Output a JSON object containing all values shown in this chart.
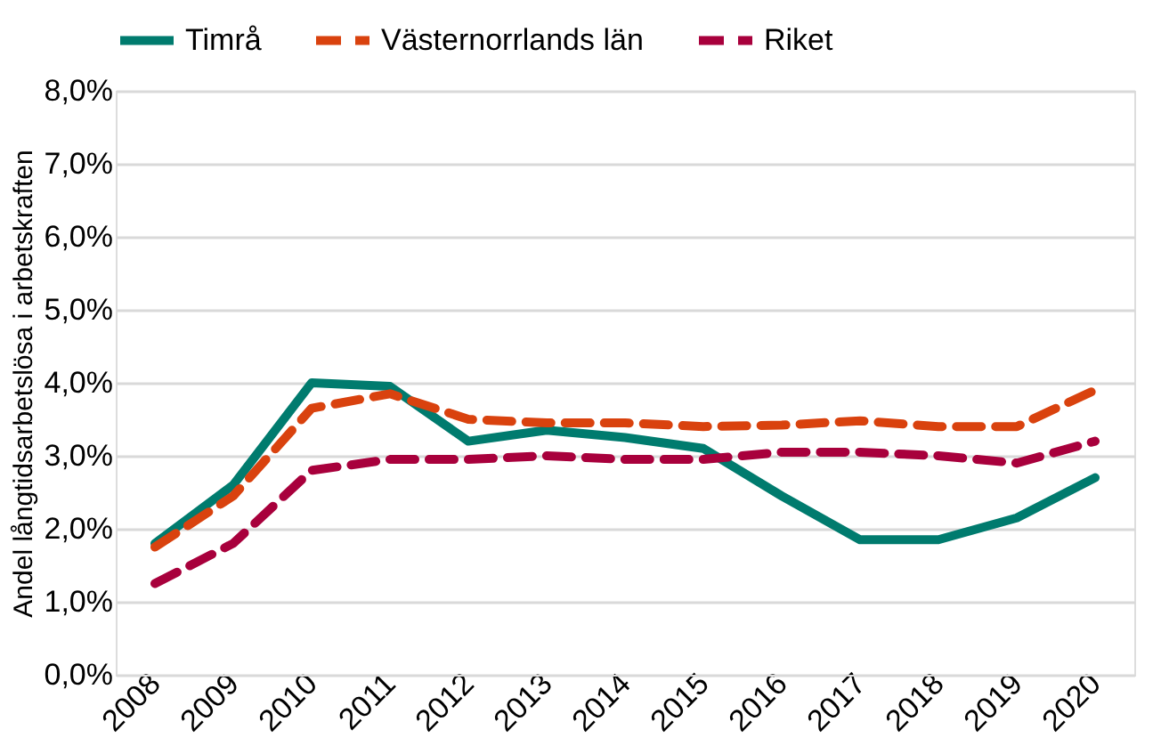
{
  "chart_data": {
    "type": "line",
    "ylabel": "Andel långtidsarbetslösa i arbetskraften",
    "categories": [
      "2008",
      "2009",
      "2010",
      "2011",
      "2012",
      "2013",
      "2014",
      "2015",
      "2016",
      "2017",
      "2018",
      "2019",
      "2020"
    ],
    "series": [
      {
        "name": "Timrå",
        "color": "#007b6e",
        "line_style": "solid",
        "values": [
          1.8,
          2.6,
          4.0,
          3.95,
          3.2,
          3.35,
          3.25,
          3.1,
          2.45,
          1.85,
          1.85,
          2.15,
          2.7
        ]
      },
      {
        "name": "Västernorrlands län",
        "color": "#d9420e",
        "line_style": "dashed",
        "values": [
          1.75,
          2.45,
          3.65,
          3.85,
          3.5,
          3.45,
          3.45,
          3.4,
          3.42,
          3.48,
          3.4,
          3.4,
          3.9
        ]
      },
      {
        "name": "Riket",
        "color": "#a8003c",
        "line_style": "dashed",
        "values": [
          1.25,
          1.8,
          2.8,
          2.95,
          2.95,
          3.0,
          2.95,
          2.95,
          3.05,
          3.05,
          3.0,
          2.9,
          3.2
        ]
      }
    ],
    "ylim": [
      0,
      8
    ],
    "yticks": [
      {
        "value": 0,
        "label": "0,0%"
      },
      {
        "value": 1,
        "label": "1,0%"
      },
      {
        "value": 2,
        "label": "2,0%"
      },
      {
        "value": 3,
        "label": "3,0%"
      },
      {
        "value": 4,
        "label": "4,0%"
      },
      {
        "value": 5,
        "label": "5,0%"
      },
      {
        "value": 6,
        "label": "6,0%"
      },
      {
        "value": 7,
        "label": "7,0%"
      },
      {
        "value": 8,
        "label": "8,0%"
      }
    ],
    "grid": "y",
    "legend": "top",
    "marker": "none"
  }
}
